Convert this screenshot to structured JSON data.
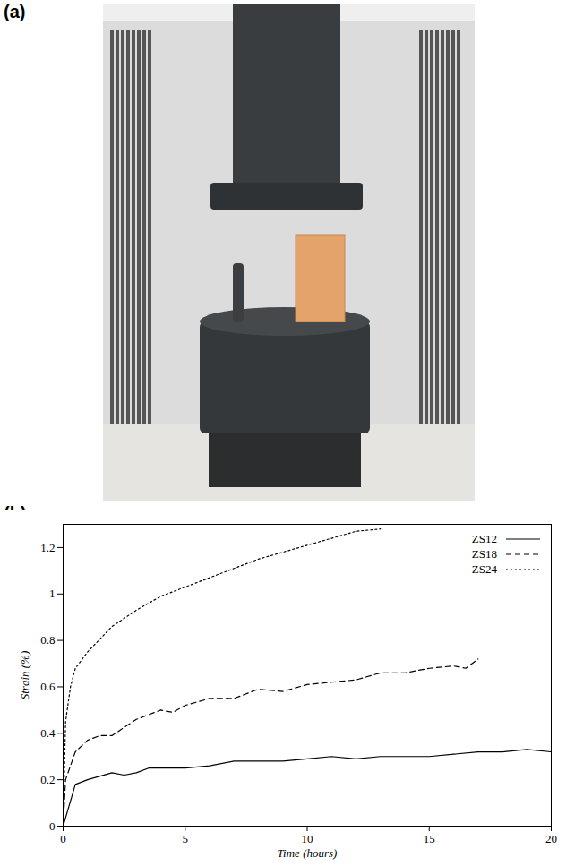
{
  "photo": {
    "label": "(a)"
  },
  "chart_data": {
    "type": "line",
    "title": "(b)",
    "x_label": "Time (hours)",
    "y_label": "Strain (%)",
    "xlim": [
      0,
      20
    ],
    "xticks": [
      0,
      5,
      10,
      15,
      20
    ],
    "ylim": [
      0,
      1.3
    ],
    "yticks": [
      0,
      0.2,
      0.4,
      0.6,
      0.8,
      1,
      1.2
    ],
    "legend": "top-right",
    "grid": false,
    "series": [
      {
        "name": "ZS12",
        "color": "#000000",
        "line_style": "solid",
        "x": [
          0,
          0.5,
          1,
          2,
          2.5,
          3,
          3.5,
          5,
          6,
          7,
          9,
          10,
          11,
          12,
          13,
          15,
          16,
          17,
          18,
          19,
          20
        ],
        "values": [
          0,
          0.18,
          0.2,
          0.23,
          0.22,
          0.23,
          0.25,
          0.25,
          0.26,
          0.28,
          0.28,
          0.29,
          0.3,
          0.29,
          0.3,
          0.3,
          0.31,
          0.32,
          0.32,
          0.33,
          0.32
        ]
      },
      {
        "name": "ZS18",
        "color": "#000000",
        "line_style": "dashed",
        "x": [
          0,
          0.1,
          0.5,
          1,
          1.5,
          2,
          3,
          4,
          4.5,
          5,
          6,
          7,
          8,
          9,
          10,
          11,
          12,
          13,
          14,
          15,
          16,
          16.5,
          17
        ],
        "values": [
          0,
          0.2,
          0.32,
          0.37,
          0.39,
          0.39,
          0.46,
          0.5,
          0.49,
          0.52,
          0.55,
          0.55,
          0.59,
          0.58,
          0.61,
          0.62,
          0.63,
          0.66,
          0.66,
          0.68,
          0.69,
          0.68,
          0.72
        ]
      },
      {
        "name": "ZS24",
        "color": "#000000",
        "line_style": "dotted",
        "x": [
          0,
          0.1,
          0.3,
          0.5,
          1,
          2,
          3,
          4,
          5,
          6,
          7,
          8,
          9,
          10,
          11,
          12,
          13
        ],
        "values": [
          0,
          0.45,
          0.6,
          0.68,
          0.75,
          0.86,
          0.93,
          0.99,
          1.03,
          1.07,
          1.11,
          1.15,
          1.18,
          1.21,
          1.24,
          1.27,
          1.28
        ]
      }
    ]
  }
}
